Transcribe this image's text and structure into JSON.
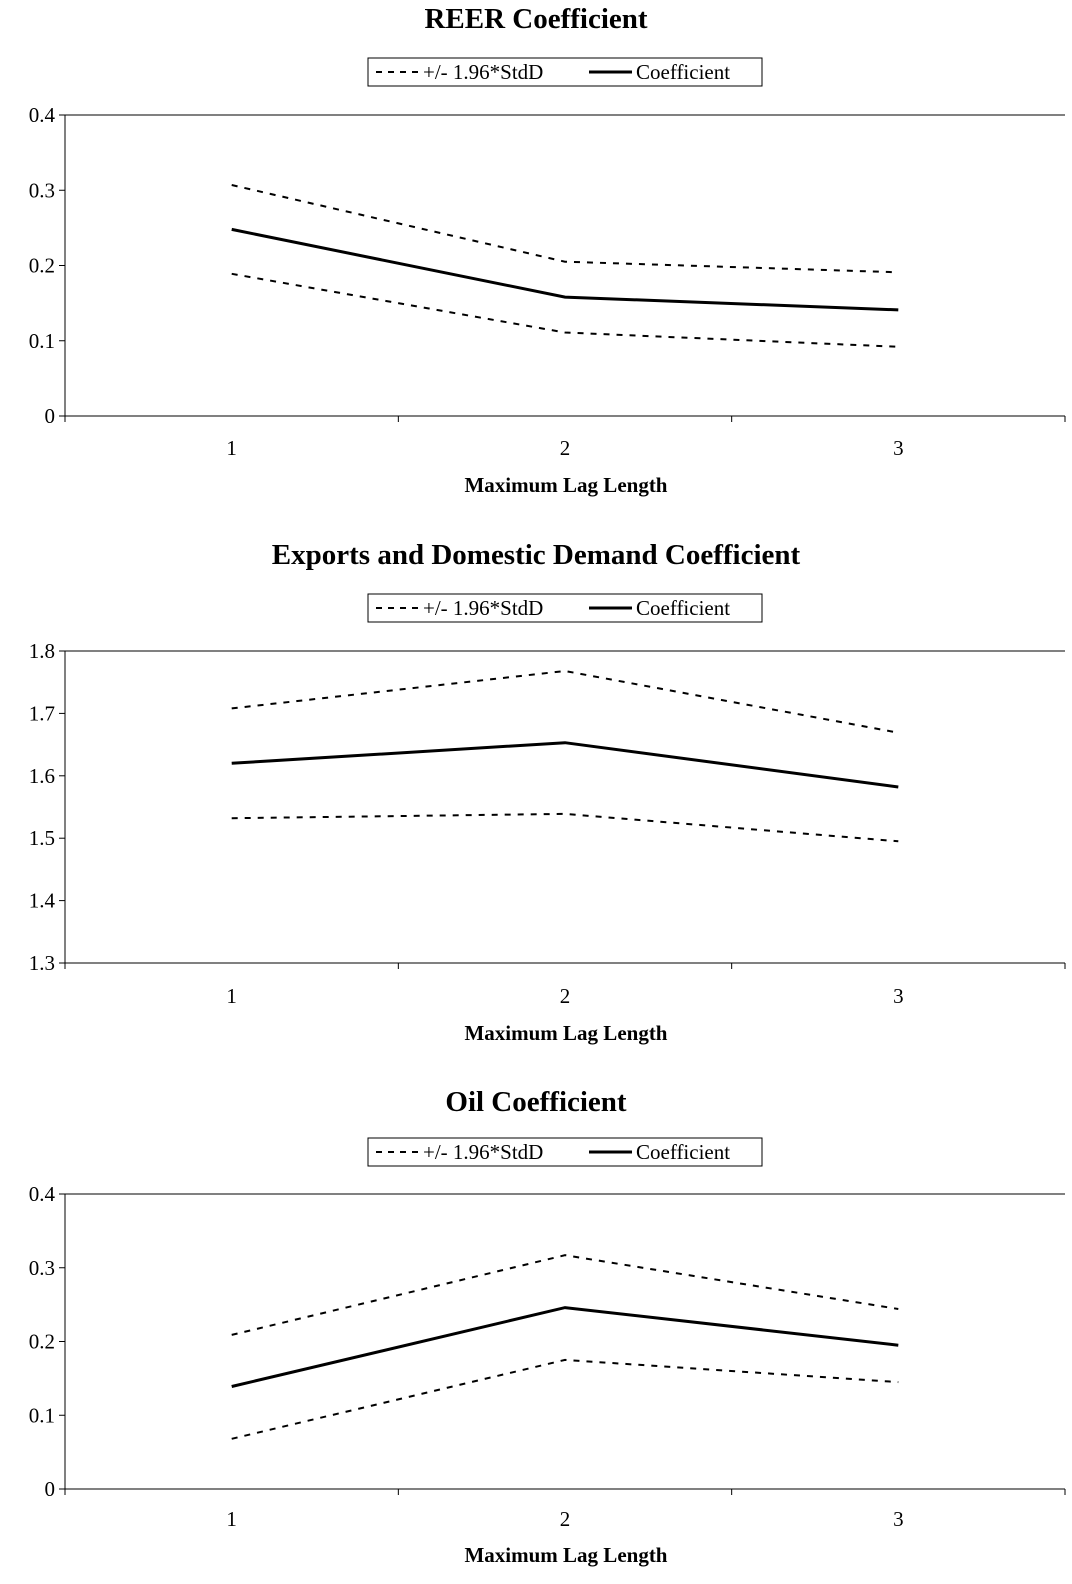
{
  "chart_data": [
    {
      "type": "line",
      "title": "REER Coefficient",
      "xlabel": "Maximum Lag Length",
      "ylabel": "",
      "categories": [
        "1",
        "2",
        "3"
      ],
      "ylim": [
        0,
        0.4
      ],
      "yticks": [
        "0",
        "0.1",
        "0.2",
        "0.3",
        "0.4"
      ],
      "legend_position": "top-center",
      "grid": false,
      "series": [
        {
          "name": "+/- 1.96*StdD",
          "style": "dashed",
          "values": [
            0.307,
            0.205,
            0.191
          ]
        },
        {
          "name": "",
          "style": "dashed",
          "values": [
            0.189,
            0.111,
            0.092
          ]
        },
        {
          "name": "Coefficient",
          "style": "solid",
          "values": [
            0.248,
            0.158,
            0.141
          ]
        }
      ]
    },
    {
      "type": "line",
      "title": "Exports and Domestic Demand Coefficient",
      "xlabel": "Maximum Lag Length",
      "ylabel": "",
      "categories": [
        "1",
        "2",
        "3"
      ],
      "ylim": [
        1.3,
        1.8
      ],
      "yticks": [
        "1.3",
        "1.4",
        "1.5",
        "1.6",
        "1.7",
        "1.8"
      ],
      "legend_position": "top-center",
      "grid": false,
      "series": [
        {
          "name": "+/- 1.96*StdD",
          "style": "dashed",
          "values": [
            1.708,
            1.768,
            1.669
          ]
        },
        {
          "name": "",
          "style": "dashed",
          "values": [
            1.532,
            1.539,
            1.495
          ]
        },
        {
          "name": "Coefficient",
          "style": "solid",
          "values": [
            1.62,
            1.653,
            1.582
          ]
        }
      ]
    },
    {
      "type": "line",
      "title": "Oil Coefficient",
      "xlabel": "Maximum Lag Length",
      "ylabel": "",
      "categories": [
        "1",
        "2",
        "3"
      ],
      "ylim": [
        0,
        0.4
      ],
      "yticks": [
        "0",
        "0.1",
        "0.2",
        "0.3",
        "0.4"
      ],
      "legend_position": "top-center",
      "grid": false,
      "series": [
        {
          "name": "+/- 1.96*StdD",
          "style": "dashed",
          "values": [
            0.209,
            0.317,
            0.244
          ]
        },
        {
          "name": "",
          "style": "dashed",
          "values": [
            0.068,
            0.175,
            0.145
          ]
        },
        {
          "name": "Coefficient",
          "style": "solid",
          "values": [
            0.139,
            0.246,
            0.195
          ]
        }
      ]
    }
  ]
}
